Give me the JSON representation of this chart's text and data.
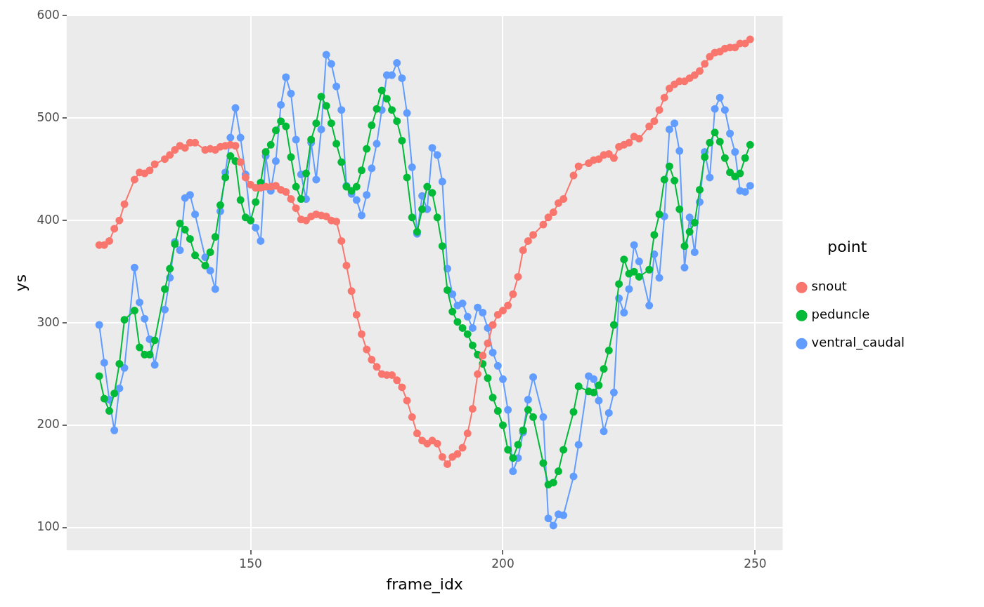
{
  "chart_data": {
    "type": "line",
    "xlabel": "frame_idx",
    "ylabel": "ys",
    "legend_title": "point",
    "x": [
      120,
      121,
      122,
      123,
      124,
      125,
      127,
      128,
      129,
      130,
      131,
      133,
      134,
      135,
      136,
      137,
      138,
      139,
      141,
      142,
      143,
      144,
      145,
      146,
      147,
      148,
      149,
      150,
      151,
      152,
      153,
      154,
      155,
      156,
      157,
      158,
      159,
      160,
      161,
      162,
      163,
      164,
      165,
      166,
      167,
      168,
      169,
      170,
      171,
      172,
      173,
      174,
      175,
      176,
      177,
      178,
      179,
      180,
      181,
      182,
      183,
      184,
      185,
      186,
      187,
      188,
      189,
      190,
      191,
      192,
      193,
      194,
      195,
      196,
      197,
      198,
      199,
      200,
      201,
      202,
      203,
      204,
      205,
      206,
      208,
      209,
      210,
      211,
      212,
      214,
      215,
      217,
      218,
      219,
      220,
      221,
      222,
      223,
      224,
      225,
      226,
      227,
      229,
      230,
      231,
      232,
      233,
      234,
      235,
      236,
      237,
      238,
      239,
      240,
      241,
      242,
      243,
      244,
      245,
      246,
      247,
      248,
      249
    ],
    "series": [
      {
        "name": "snout",
        "color": "#f8766d",
        "values": [
          376,
          376,
          380,
          392,
          400,
          416,
          440,
          447,
          446,
          449,
          455,
          460,
          464,
          469,
          473,
          471,
          476,
          476,
          469,
          470,
          469,
          472,
          473,
          474,
          473,
          457,
          442,
          435,
          432,
          432,
          433,
          433,
          434,
          430,
          428,
          421,
          412,
          401,
          400,
          404,
          406,
          405,
          404,
          400,
          399,
          380,
          356,
          331,
          308,
          289,
          274,
          264,
          257,
          250,
          249,
          249,
          244,
          237,
          224,
          208,
          192,
          185,
          182,
          185,
          182,
          169,
          162,
          169,
          172,
          178,
          192,
          216,
          250,
          268,
          280,
          298,
          308,
          312,
          317,
          328,
          345,
          371,
          380,
          386,
          396,
          403,
          408,
          417,
          421,
          444,
          453,
          456,
          459,
          460,
          464,
          465,
          461,
          472,
          474,
          476,
          482,
          480,
          492,
          497,
          508,
          520,
          529,
          533,
          536,
          536,
          539,
          542,
          546,
          553,
          560,
          564,
          565,
          568,
          569,
          569,
          573,
          573,
          577
        ]
      },
      {
        "name": "peduncle",
        "color": "#00ba38",
        "values": [
          248,
          226,
          214,
          231,
          260,
          303,
          312,
          276,
          269,
          269,
          283,
          333,
          353,
          377,
          397,
          391,
          382,
          366,
          356,
          369,
          384,
          415,
          442,
          463,
          458,
          420,
          403,
          400,
          418,
          437,
          467,
          474,
          488,
          497,
          492,
          462,
          433,
          421,
          446,
          479,
          495,
          521,
          512,
          495,
          475,
          457,
          433,
          429,
          433,
          449,
          470,
          493,
          509,
          527,
          519,
          508,
          497,
          478,
          442,
          403,
          389,
          411,
          433,
          427,
          403,
          375,
          332,
          311,
          301,
          295,
          289,
          278,
          269,
          260,
          246,
          227,
          214,
          200,
          176,
          168,
          181,
          195,
          215,
          208,
          163,
          142,
          144,
          155,
          176,
          213,
          238,
          233,
          232,
          239,
          255,
          273,
          298,
          338,
          362,
          348,
          350,
          345,
          352,
          386,
          406,
          440,
          453,
          439,
          411,
          375,
          389,
          398,
          430,
          462,
          476,
          486,
          477,
          461,
          447,
          443,
          446,
          461,
          474
        ]
      },
      {
        "name": "ventral_caudal",
        "color": "#619cff",
        "values": [
          298,
          261,
          225,
          195,
          236,
          256,
          354,
          320,
          304,
          284,
          259,
          313,
          344,
          379,
          371,
          422,
          425,
          406,
          364,
          351,
          333,
          409,
          447,
          481,
          510,
          481,
          445,
          400,
          393,
          380,
          463,
          429,
          458,
          513,
          540,
          524,
          479,
          445,
          421,
          476,
          440,
          489,
          562,
          553,
          531,
          508,
          434,
          426,
          420,
          405,
          425,
          451,
          475,
          508,
          542,
          542,
          554,
          539,
          505,
          452,
          387,
          424,
          411,
          471,
          464,
          438,
          353,
          328,
          317,
          319,
          306,
          295,
          315,
          310,
          295,
          271,
          258,
          245,
          215,
          155,
          168,
          193,
          225,
          247,
          208,
          109,
          102,
          113,
          112,
          150,
          181,
          248,
          245,
          224,
          194,
          212,
          232,
          324,
          310,
          333,
          376,
          360,
          317,
          367,
          344,
          404,
          489,
          495,
          468,
          354,
          403,
          369,
          418,
          467,
          442,
          509,
          520,
          508,
          485,
          467,
          429,
          428,
          434
        ]
      }
    ],
    "xlim": [
      113.55,
      255.45
    ],
    "xticks": [
      150,
      200,
      250
    ],
    "ylim": [
      77.8,
      600.2
    ],
    "yticks": [
      100,
      200,
      300,
      400,
      500,
      600
    ],
    "grid": true,
    "legend": "right",
    "marker": "circle",
    "line_style": "solid"
  }
}
